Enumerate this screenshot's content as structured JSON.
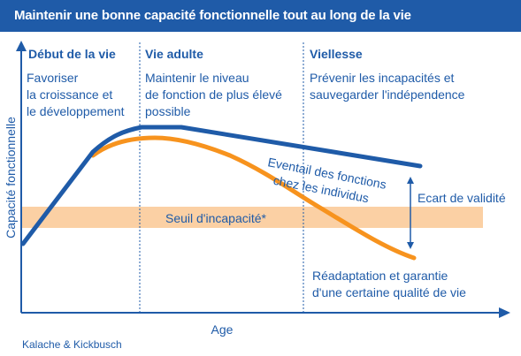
{
  "title": "Maintenir une bonne capacité fonctionnelle tout au long de la vie",
  "phases": [
    {
      "heading": "Début de la vie",
      "lines": [
        "Favoriser",
        "la croissance et",
        "le développement"
      ]
    },
    {
      "heading": "Vie adulte",
      "lines": [
        "Maintenir le niveau",
        "de fonction de plus élevé",
        "possible"
      ]
    },
    {
      "heading": "Viellesse",
      "lines": [
        "Prévenir les incapacités et",
        "sauvegarder l'indépendence"
      ]
    }
  ],
  "y_axis_label": "Capacité fonctionnelle",
  "x_axis_label": "Age",
  "threshold_label": "Seuil d'incapacité*",
  "range_label": [
    "Eventail des fonctions",
    "chez les individus"
  ],
  "gap_label": "Ecart de validité",
  "bottom_note": [
    "Réadaptation et garantie",
    "d'une certaine qualité de vie"
  ],
  "source": "Kalache & Kickbusch",
  "colors": {
    "primary_blue": "#1f5ba8",
    "curve_orange": "#f7931e",
    "threshold_band": "#fbd0a4",
    "title_text": "#ffffff"
  }
}
